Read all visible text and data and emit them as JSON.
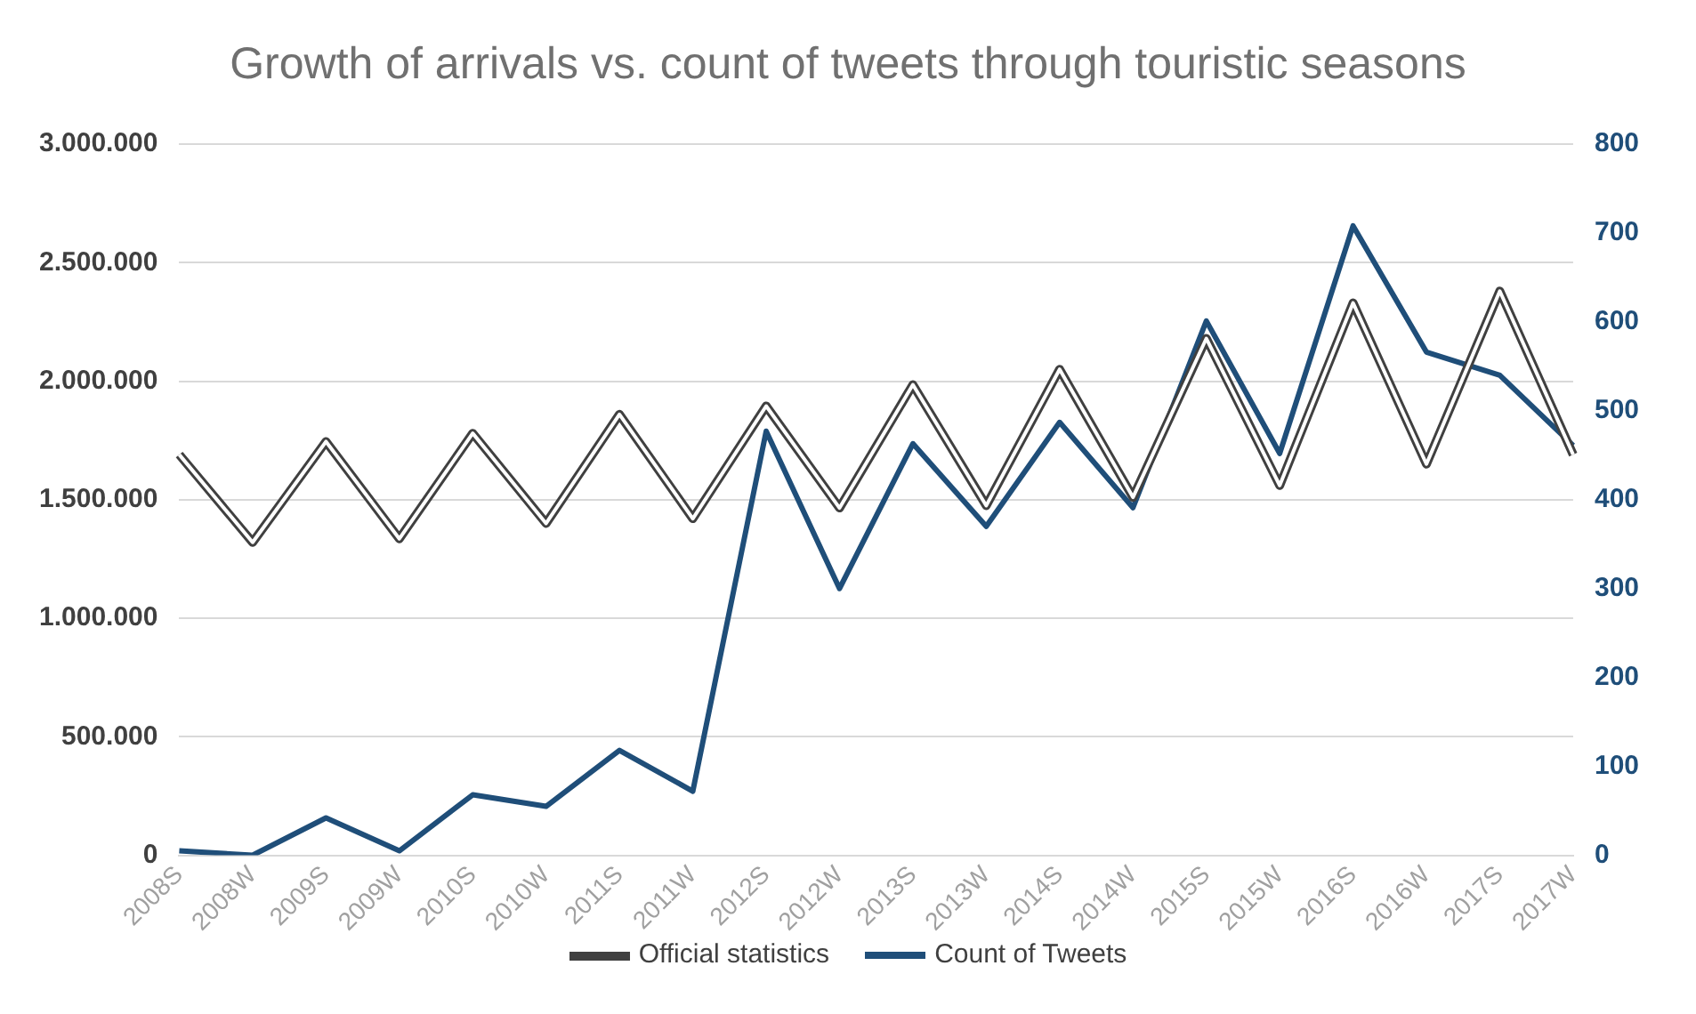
{
  "chart_data": {
    "type": "line",
    "title": "Growth of arrivals vs. count of tweets through touristic seasons",
    "categories": [
      "2008S",
      "2008W",
      "2009S",
      "2009W",
      "2010S",
      "2010W",
      "2011S",
      "2011W",
      "2012S",
      "2012W",
      "2013S",
      "2013W",
      "2014S",
      "2014W",
      "2015S",
      "2015W",
      "2016S",
      "2016W",
      "2017S",
      "2017W"
    ],
    "series": [
      {
        "name": "Official statistics",
        "color": "#404040",
        "values": [
          1690000,
          1320000,
          1745000,
          1335000,
          1780000,
          1400000,
          1860000,
          1420000,
          1895000,
          1465000,
          1985000,
          1475000,
          2050000,
          1510000,
          2180000,
          1560000,
          2330000,
          1650000,
          2380000,
          1690000
        ]
      },
      {
        "name": "Count of Tweets",
        "color": "#1f4e79",
        "axis": "y2",
        "values": [
          5,
          0,
          42,
          5,
          68,
          55,
          118,
          72,
          477,
          300,
          463,
          370,
          487,
          391,
          601,
          452,
          708,
          566,
          540,
          461
        ]
      }
    ],
    "ylim": [
      0,
      3000000
    ],
    "yticks": [
      {
        "value": 0,
        "label": "0"
      },
      {
        "value": 500000,
        "label": "500.000"
      },
      {
        "value": 1000000,
        "label": "1.000.000"
      },
      {
        "value": 1500000,
        "label": "1.500.000"
      },
      {
        "value": 2000000,
        "label": "2.000.000"
      },
      {
        "value": 2500000,
        "label": "2.500.000"
      },
      {
        "value": 3000000,
        "label": "3.000.000"
      }
    ],
    "y2lim": [
      0,
      800
    ],
    "y2ticks": [
      0,
      100,
      200,
      300,
      400,
      500,
      600,
      700,
      800
    ],
    "grid": "y",
    "legend": "bottom",
    "marker": "none",
    "line_style": "solid"
  }
}
